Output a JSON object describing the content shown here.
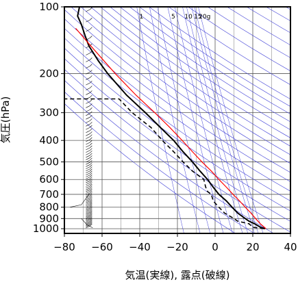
{
  "chart_data": {
    "type": "line",
    "title": "",
    "xlabel": "気温(実線), 露点(破線)",
    "ylabel": "気圧(hPa)",
    "xlim": [
      -80,
      40
    ],
    "ylim": [
      1050,
      100
    ],
    "y_scale": "log",
    "x_ticks": [
      -80,
      -60,
      -40,
      -20,
      0,
      20,
      40
    ],
    "x_tick_labels": [
      "−80",
      "−60",
      "−40",
      "−20",
      "0",
      "20",
      "40"
    ],
    "y_ticks": [
      100,
      200,
      300,
      400,
      500,
      600,
      700,
      800,
      900,
      1000
    ],
    "y_tick_labels": [
      "100",
      "200",
      "300",
      "400",
      "500",
      "600",
      "700",
      "800",
      "900",
      "1000"
    ],
    "mixing_ratio_labels": [
      "1",
      "5",
      "10",
      "15",
      "20g"
    ],
    "grid": true,
    "colors": {
      "temperature": "#000000",
      "dewpoint": "#000000",
      "parcel": "#ff0000",
      "dry_adiabats": "#3b3bd6",
      "isotherms": "#000000",
      "wind": "#000000"
    },
    "series": [
      {
        "style": "solid",
        "p": [
          1000,
          985,
          950,
          925,
          900,
          850,
          800,
          750,
          700,
          650,
          600,
          550,
          500,
          450,
          400,
          350,
          300,
          250,
          200,
          175,
          150,
          135,
          120,
          110,
          100
        ],
        "t": [
          26.5,
          24,
          21,
          18,
          16,
          12,
          9,
          6,
          2,
          -1,
          -4,
          -8,
          -12,
          -17,
          -22,
          -29,
          -37,
          -47,
          -57,
          -62,
          -67,
          -69,
          -71,
          -73,
          -72
        ]
      },
      {
        "style": "dashed",
        "p": [
          1000,
          985,
          950,
          925,
          900,
          850,
          800,
          750,
          700,
          680,
          650,
          600,
          550,
          500,
          450,
          400,
          350,
          300,
          260,
          260
        ],
        "t": [
          26,
          20,
          18,
          12,
          10,
          5,
          2,
          -1,
          -2,
          -4,
          -5,
          -6,
          -12,
          -17,
          -22,
          -28,
          -34,
          -44,
          -51,
          -80
        ]
      },
      {
        "style": "solid-red",
        "p": [
          1000,
          950,
          900,
          850,
          800,
          750,
          700,
          650,
          600,
          550,
          500,
          450,
          400,
          350,
          300,
          250,
          200,
          150,
          125
        ],
        "t": [
          27,
          24,
          21.5,
          19,
          16,
          13,
          9.5,
          6,
          2,
          -2,
          -7,
          -12,
          -17.5,
          -24,
          -32,
          -42,
          -53,
          -66,
          -74
        ]
      }
    ],
    "dry_adiabat_thetas": [
      280,
      290,
      300,
      310,
      320,
      330,
      340,
      350,
      360,
      370,
      380,
      390,
      400,
      410,
      420,
      430,
      440,
      450,
      460,
      480,
      500,
      520,
      540,
      560,
      580,
      600,
      620
    ],
    "mixing_ratio_lines": [
      1,
      2,
      3,
      5,
      7,
      10,
      12,
      15,
      17,
      20
    ]
  }
}
